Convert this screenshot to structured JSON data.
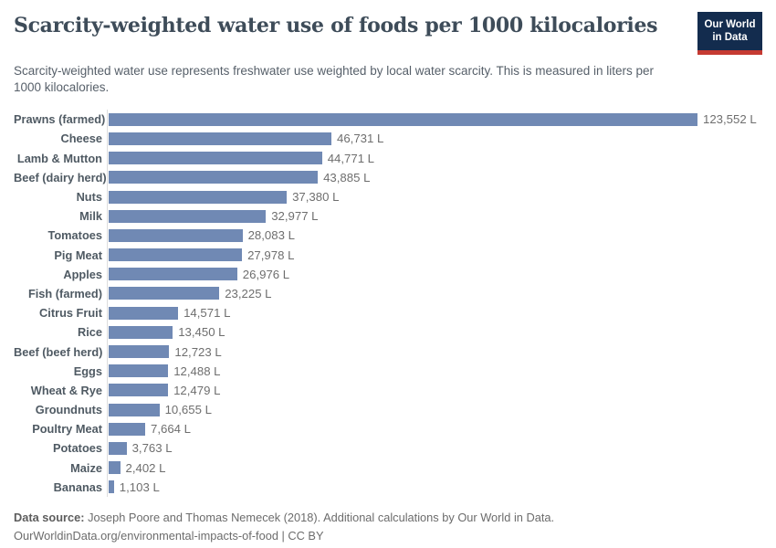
{
  "header": {
    "title": "Scarcity-weighted water use of foods per 1000 kilocalories",
    "subtitle": "Scarcity-weighted water use represents freshwater use weighted by local water scarcity. This is measured in liters per 1000 kilocalories.",
    "logo": {
      "line1": "Our World",
      "line2": "in Data"
    }
  },
  "chart_data": {
    "type": "bar",
    "orientation": "horizontal",
    "title": "Scarcity-weighted water use of foods per 1000 kilocalories",
    "categories": [
      "Prawns (farmed)",
      "Cheese",
      "Lamb & Mutton",
      "Beef (dairy herd)",
      "Nuts",
      "Milk",
      "Tomatoes",
      "Pig Meat",
      "Apples",
      "Fish (farmed)",
      "Citrus Fruit",
      "Rice",
      "Beef (beef herd)",
      "Eggs",
      "Wheat & Rye",
      "Groundnuts",
      "Poultry Meat",
      "Potatoes",
      "Maize",
      "Bananas"
    ],
    "values": [
      123552,
      46731,
      44771,
      43885,
      37380,
      32977,
      28083,
      27978,
      26976,
      23225,
      14571,
      13450,
      12723,
      12488,
      12479,
      10655,
      7664,
      3763,
      2402,
      1103
    ],
    "value_labels": [
      "123,552 L",
      "46,731 L",
      "44,771 L",
      "43,885 L",
      "37,380 L",
      "32,977 L",
      "28,083 L",
      "27,978 L",
      "26,976 L",
      "23,225 L",
      "14,571 L",
      "13,450 L",
      "12,723 L",
      "12,488 L",
      "12,479 L",
      "10,655 L",
      "7,664 L",
      "3,763 L",
      "2,402 L",
      "1,103 L"
    ],
    "unit": "liters per 1000 kilocalories",
    "xlim": [
      0,
      123552
    ],
    "grid": false,
    "legend": false,
    "bar_color": "#7089b4",
    "axis_line_color": "#dcdcdc"
  },
  "footer": {
    "datasource_label": "Data source:",
    "datasource_text": " Joseph Poore and Thomas Nemecek (2018). Additional calculations by Our World in Data.",
    "url_line": "OurWorldinData.org/environmental-impacts-of-food | CC BY"
  },
  "colors": {
    "title": "#3e4c59",
    "subtitle": "#57606a",
    "category_label": "#4f5a63",
    "value_label": "#6e6e6e",
    "bar": "#7089b4",
    "logo_navy": "#132c4e",
    "logo_red": "#c53a32",
    "footer_text": "#6c6c6c"
  }
}
